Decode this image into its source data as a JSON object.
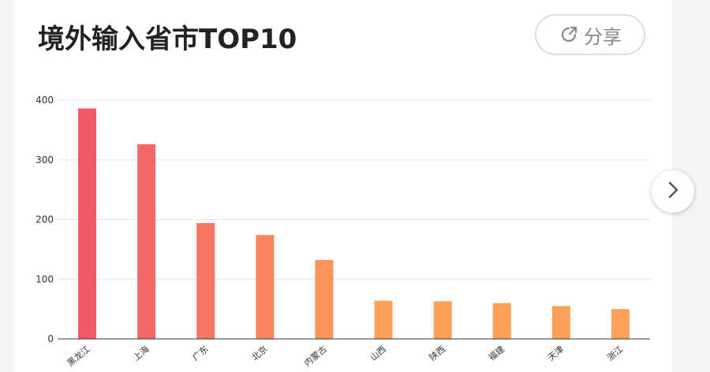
{
  "header": {
    "title": "境外输入省市TOP10",
    "share_label": "分享"
  },
  "icons": {
    "share": "share-arrow-icon",
    "next": "chevron-right-icon"
  },
  "colors": {
    "bar_top": "#f05a68",
    "bar_bottom": "#ffa059",
    "grid": "#e6e6e6",
    "axis": "#333333"
  },
  "chart_data": {
    "type": "bar",
    "categories": [
      "黑龙江",
      "上海",
      "广东",
      "北京",
      "内蒙古",
      "山西",
      "陕西",
      "福建",
      "天津",
      "浙江"
    ],
    "values": [
      386,
      326,
      194,
      174,
      132,
      64,
      63,
      60,
      55,
      50
    ],
    "yticks": [
      0,
      100,
      200,
      300,
      400
    ],
    "ylim": [
      0,
      400
    ],
    "grid": true,
    "legend": "none"
  }
}
